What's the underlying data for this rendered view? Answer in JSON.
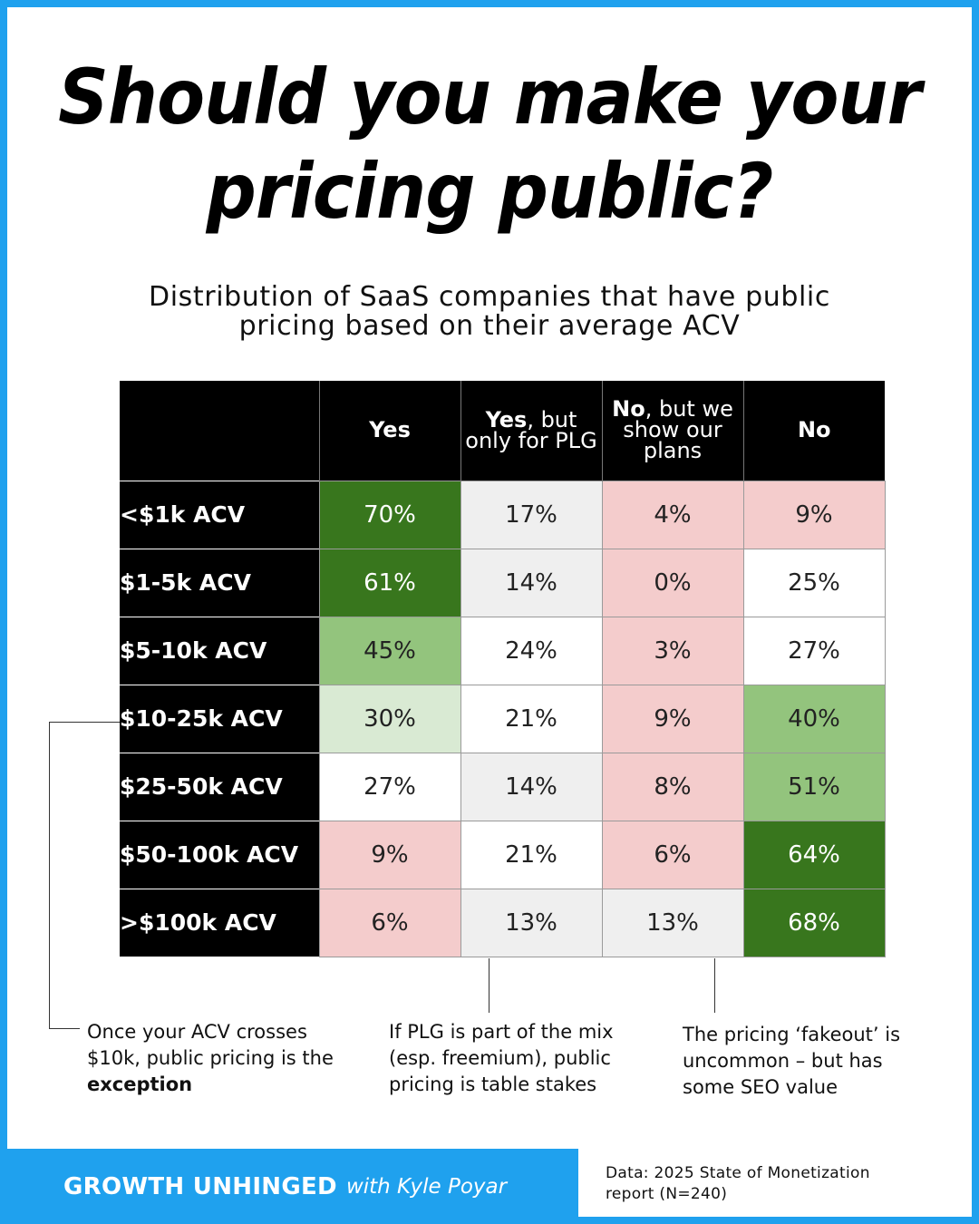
{
  "title": {
    "line1": "Should you make your",
    "line2": "pricing public?"
  },
  "subtitle": {
    "line1": "Distribution of SaaS companies that have public",
    "line2": "pricing based on their average ACV"
  },
  "chart_data": {
    "type": "table",
    "title": "Distribution of SaaS companies that have public pricing based on their average ACV",
    "columns": [
      {
        "bold": "Yes",
        "rest": ""
      },
      {
        "bold": "Yes",
        "rest": ", but only for PLG"
      },
      {
        "bold": "No",
        "rest": ", but we show our plans"
      },
      {
        "bold": "No",
        "rest": ""
      }
    ],
    "rows": [
      {
        "label": "<$1k ACV",
        "values": [
          "70%",
          "17%",
          "4%",
          "9%"
        ],
        "colors": [
          "#38761d",
          "#efefef",
          "#f4cccc",
          "#f4cccc"
        ]
      },
      {
        "label": "$1-5k ACV",
        "values": [
          "61%",
          "14%",
          "0%",
          "25%"
        ],
        "colors": [
          "#38761d",
          "#efefef",
          "#f4cccc",
          "#ffffff"
        ]
      },
      {
        "label": "$5-10k ACV",
        "values": [
          "45%",
          "24%",
          "3%",
          "27%"
        ],
        "colors": [
          "#93c47d",
          "#ffffff",
          "#f4cccc",
          "#ffffff"
        ]
      },
      {
        "label": "$10-25k ACV",
        "values": [
          "30%",
          "21%",
          "9%",
          "40%"
        ],
        "colors": [
          "#d9ead3",
          "#ffffff",
          "#f4cccc",
          "#93c47d"
        ]
      },
      {
        "label": "$25-50k ACV",
        "values": [
          "27%",
          "14%",
          "8%",
          "51%"
        ],
        "colors": [
          "#ffffff",
          "#efefef",
          "#f4cccc",
          "#93c47d"
        ]
      },
      {
        "label": "$50-100k ACV",
        "values": [
          "9%",
          "21%",
          "6%",
          "64%"
        ],
        "colors": [
          "#f4cccc",
          "#ffffff",
          "#f4cccc",
          "#38761d"
        ]
      },
      {
        "label": ">$100k ACV",
        "values": [
          "6%",
          "13%",
          "13%",
          "68%"
        ],
        "colors": [
          "#f4cccc",
          "#efefef",
          "#efefef",
          "#38761d"
        ]
      }
    ]
  },
  "callouts": [
    {
      "line1": "Once your ACV crosses",
      "line2": "$10k, public pricing is the",
      "line3": "exception"
    },
    {
      "line1": "If PLG is part of the mix",
      "line2": "(esp. freemium), public",
      "line3": "pricing is table stakes"
    },
    {
      "line1": "The pricing ‘fakeout’ is",
      "line2": "uncommon – but has",
      "line3": "some SEO value"
    }
  ],
  "brand": {
    "name": "GROWTH UNHINGED",
    "byline": "with Kyle Poyar"
  },
  "source": {
    "line1": "Data: 2025 State of Monetization",
    "line2": "report (N=240)"
  },
  "colors": {
    "accent": "#1fa1ee",
    "dark_green": "#38761d",
    "mid_green": "#93c47d",
    "light_green": "#d9ead3",
    "pink": "#f4cccc",
    "gray": "#efefef"
  }
}
